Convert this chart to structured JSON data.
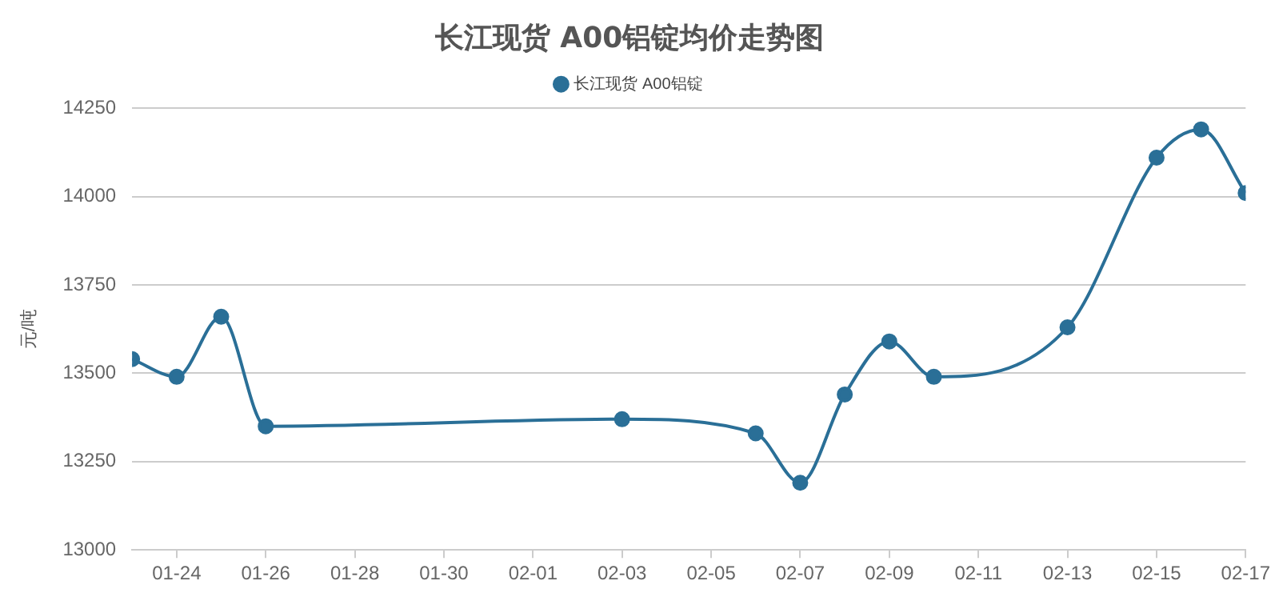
{
  "chart_data": {
    "type": "line",
    "title": "长江现货 A00铝锭均价走势图",
    "ylabel": "元/吨",
    "x": [
      "--01-23",
      "--01-24",
      "--01-25",
      "--01-26",
      "--02-03",
      "--02-06",
      "--02-07",
      "--02-08",
      "--02-09",
      "--02-10",
      "--02-13",
      "--02-15",
      "--02-16",
      "--02-17"
    ],
    "series": [
      {
        "name": "长江现货 A00铝锭",
        "color": "#2a6f97",
        "values": [
          13540,
          13490,
          13660,
          13350,
          13370,
          13330,
          13190,
          13440,
          13590,
          13490,
          13630,
          14110,
          14190,
          14010
        ]
      }
    ],
    "xlim": [
      "--01-23",
      "--02-17"
    ],
    "xticks": [
      {
        "value": "--01-24",
        "label": "01-24"
      },
      {
        "value": "--01-26",
        "label": "01-26"
      },
      {
        "value": "--01-28",
        "label": "01-28"
      },
      {
        "value": "--01-30",
        "label": "01-30"
      },
      {
        "value": "--02-01",
        "label": "02-01"
      },
      {
        "value": "--02-03",
        "label": "02-03"
      },
      {
        "value": "--02-05",
        "label": "02-05"
      },
      {
        "value": "--02-07",
        "label": "02-07"
      },
      {
        "value": "--02-09",
        "label": "02-09"
      },
      {
        "value": "--02-11",
        "label": "02-11"
      },
      {
        "value": "--02-13",
        "label": "02-13"
      },
      {
        "value": "--02-15",
        "label": "02-15"
      },
      {
        "value": "--02-17",
        "label": "02-17"
      }
    ],
    "ylim": [
      13000,
      14250
    ],
    "yticks": [
      13000,
      13250,
      13500,
      13750,
      14000,
      14250
    ],
    "grid": "y",
    "legend": "top",
    "marker": "circle",
    "line_style": "solid"
  }
}
